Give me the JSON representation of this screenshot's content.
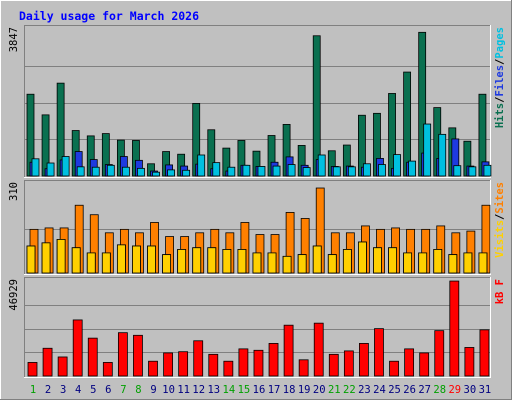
{
  "chart_data": [
    {
      "type": "bar",
      "title": "Daily usage for March 2026",
      "panel": "hits",
      "ymax_label": "3847",
      "ylim": [
        0,
        3847
      ],
      "grid": true,
      "legend": [
        {
          "label": "Pages",
          "color": "#00C0E0"
        },
        {
          "label": "Files",
          "color": "#1E3AE0"
        },
        {
          "label": "Hits",
          "color": "#0A7050"
        }
      ],
      "legend_sep": "/",
      "categories": [
        "1",
        "2",
        "3",
        "4",
        "5",
        "6",
        "7",
        "8",
        "9",
        "10",
        "11",
        "12",
        "13",
        "14",
        "15",
        "16",
        "17",
        "18",
        "19",
        "20",
        "21",
        "22",
        "23",
        "24",
        "25",
        "26",
        "27",
        "28",
        "29",
        "30",
        "31"
      ],
      "series": [
        {
          "name": "Hits",
          "color": "#0A7050",
          "values": [
            2140,
            1600,
            2430,
            1190,
            1050,
            1110,
            940,
            930,
            320,
            640,
            570,
            1900,
            1210,
            730,
            930,
            650,
            1060,
            1350,
            800,
            3670,
            660,
            810,
            1590,
            1640,
            2160,
            2720,
            3760,
            1790,
            1260,
            910,
            2140
          ]
        },
        {
          "name": "Files",
          "color": "#1E3AE0",
          "values": [
            360,
            190,
            420,
            640,
            430,
            300,
            510,
            410,
            130,
            290,
            260,
            310,
            190,
            130,
            280,
            250,
            360,
            500,
            280,
            430,
            250,
            260,
            230,
            460,
            200,
            360,
            600,
            460,
            970,
            260,
            370
          ]
        },
        {
          "name": "Pages",
          "color": "#00C0E0",
          "values": [
            450,
            340,
            510,
            240,
            230,
            280,
            230,
            200,
            100,
            160,
            150,
            550,
            350,
            230,
            280,
            250,
            260,
            300,
            220,
            550,
            240,
            240,
            320,
            300,
            560,
            390,
            1360,
            1090,
            270,
            240,
            280
          ]
        }
      ]
    },
    {
      "type": "bar",
      "panel": "sites",
      "ymax_label": "310",
      "ylim": [
        0,
        310
      ],
      "grid": true,
      "legend": [
        {
          "label": "Sites",
          "color": "#FF8000"
        },
        {
          "label": "Visits",
          "color": "#FFD000"
        }
      ],
      "legend_sep": "/",
      "categories": [
        "1",
        "2",
        "3",
        "4",
        "5",
        "6",
        "7",
        "8",
        "9",
        "10",
        "11",
        "12",
        "13",
        "14",
        "15",
        "16",
        "17",
        "18",
        "19",
        "20",
        "21",
        "22",
        "23",
        "24",
        "25",
        "26",
        "27",
        "28",
        "29",
        "30",
        "31"
      ],
      "series": [
        {
          "name": "Sites",
          "color": "#FF8000",
          "values": [
            152,
            157,
            157,
            236,
            203,
            140,
            152,
            140,
            176,
            127,
            127,
            140,
            152,
            140,
            176,
            134,
            134,
            211,
            190,
            296,
            140,
            140,
            164,
            152,
            157,
            152,
            152,
            164,
            140,
            146,
            236
          ]
        },
        {
          "name": "Visits",
          "color": "#FFD000",
          "values": [
            94,
            105,
            117,
            88,
            70,
            70,
            98,
            94,
            94,
            64,
            82,
            88,
            88,
            82,
            82,
            70,
            70,
            58,
            64,
            94,
            64,
            82,
            108,
            88,
            88,
            70,
            70,
            82,
            64,
            70,
            70
          ]
        }
      ]
    },
    {
      "type": "bar",
      "panel": "kbytes",
      "ymax_label": "46929",
      "ylim": [
        0,
        46929
      ],
      "grid": true,
      "legend": [
        {
          "label": "kB F",
          "color": "#FF0000"
        }
      ],
      "legend_sep": "",
      "categories": [
        "1",
        "2",
        "3",
        "4",
        "5",
        "6",
        "7",
        "8",
        "9",
        "10",
        "11",
        "12",
        "13",
        "14",
        "15",
        "16",
        "17",
        "18",
        "19",
        "20",
        "21",
        "22",
        "23",
        "24",
        "25",
        "26",
        "27",
        "28",
        "29",
        "30",
        "31"
      ],
      "series": [
        {
          "name": "kB F",
          "color": "#FF0000",
          "values": [
            6700,
            13700,
            9400,
            27700,
            18700,
            6700,
            21400,
            20100,
            7300,
            11400,
            12000,
            17400,
            10700,
            7300,
            13400,
            12700,
            16100,
            25100,
            8000,
            26100,
            10700,
            12400,
            16100,
            23400,
            7300,
            13400,
            11400,
            22400,
            46900,
            14100,
            22800
          ]
        }
      ]
    }
  ],
  "x_axis": {
    "labels": [
      "1",
      "2",
      "3",
      "4",
      "5",
      "6",
      "7",
      "8",
      "9",
      "10",
      "11",
      "12",
      "13",
      "14",
      "15",
      "16",
      "17",
      "18",
      "19",
      "20",
      "21",
      "22",
      "23",
      "24",
      "25",
      "26",
      "27",
      "28",
      "29",
      "30",
      "31"
    ],
    "weekend_days": [
      1,
      7,
      8,
      14,
      15,
      21,
      22,
      28,
      29
    ],
    "weekday_color": "#000080",
    "weekend_color": "#00A000",
    "highlight_day": 29,
    "highlight_color": "#FF0000"
  },
  "colors": {
    "background": "#C0C0C0",
    "grid": "#808080",
    "title": "#0000FF"
  }
}
